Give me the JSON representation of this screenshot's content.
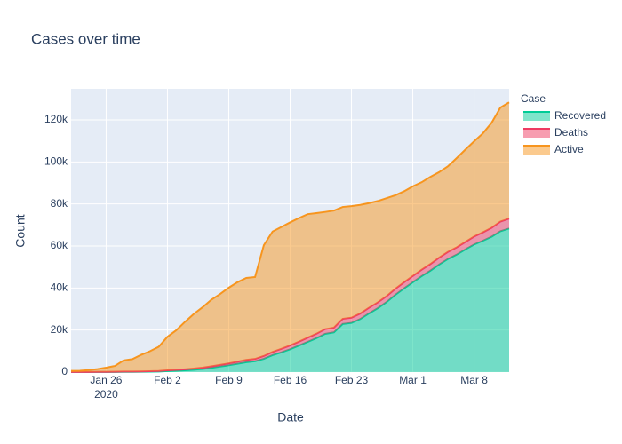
{
  "chart_data": {
    "type": "area",
    "stacked": true,
    "title": "Cases over time",
    "x_label": "Date",
    "y_label": "Count",
    "legend_title": "Case",
    "legend_position": "right",
    "grid": true,
    "x": [
      "2020-01-22",
      "2020-01-23",
      "2020-01-24",
      "2020-01-25",
      "2020-01-26",
      "2020-01-27",
      "2020-01-28",
      "2020-01-29",
      "2020-01-30",
      "2020-01-31",
      "2020-02-01",
      "2020-02-02",
      "2020-02-03",
      "2020-02-04",
      "2020-02-05",
      "2020-02-06",
      "2020-02-07",
      "2020-02-08",
      "2020-02-09",
      "2020-02-10",
      "2020-02-11",
      "2020-02-12",
      "2020-02-13",
      "2020-02-14",
      "2020-02-15",
      "2020-02-16",
      "2020-02-17",
      "2020-02-18",
      "2020-02-19",
      "2020-02-20",
      "2020-02-21",
      "2020-02-22",
      "2020-02-23",
      "2020-02-24",
      "2020-02-25",
      "2020-02-26",
      "2020-02-27",
      "2020-02-28",
      "2020-02-29",
      "2020-03-01",
      "2020-03-02",
      "2020-03-03",
      "2020-03-04",
      "2020-03-05",
      "2020-03-06",
      "2020-03-07",
      "2020-03-08",
      "2020-03-09",
      "2020-03-10",
      "2020-03-11",
      "2020-03-12"
    ],
    "xlim": [
      "2020-01-22",
      "2020-03-12"
    ],
    "xticks": [
      {
        "value": "2020-01-26",
        "label": "Jan 26",
        "year": "2020"
      },
      {
        "value": "2020-02-02",
        "label": "Feb 2"
      },
      {
        "value": "2020-02-09",
        "label": "Feb 9"
      },
      {
        "value": "2020-02-16",
        "label": "Feb 16"
      },
      {
        "value": "2020-02-23",
        "label": "Feb 23"
      },
      {
        "value": "2020-03-01",
        "label": "Mar 1"
      },
      {
        "value": "2020-03-08",
        "label": "Mar 8"
      }
    ],
    "ylim": [
      0,
      134800
    ],
    "yticks": [
      0,
      {
        "value": 20000,
        "label": "20k"
      },
      {
        "value": 40000,
        "label": "40k"
      },
      {
        "value": 60000,
        "label": "60k"
      },
      {
        "value": 80000,
        "label": "80k"
      },
      {
        "value": 100000,
        "label": "100k"
      },
      {
        "value": 120000,
        "label": "120k"
      }
    ],
    "series": [
      {
        "name": "Recovered",
        "color": "#00cc96",
        "values": [
          28,
          30,
          36,
          39,
          52,
          61,
          107,
          126,
          143,
          222,
          284,
          472,
          623,
          852,
          1124,
          1487,
          2011,
          2616,
          3244,
          3946,
          4683,
          5150,
          6295,
          8058,
          9395,
          10865,
          12583,
          14352,
          16121,
          18177,
          18890,
          22886,
          23394,
          25227,
          27905,
          30384,
          33277,
          36711,
          39782,
          42716,
          45602,
          48228,
          51170,
          53796,
          55865,
          58358,
          60694,
          62494,
          64404,
          67003,
          68324
        ]
      },
      {
        "name": "Deaths",
        "color": "#ef3b62",
        "values": [
          17,
          18,
          26,
          42,
          56,
          82,
          131,
          133,
          171,
          213,
          259,
          362,
          426,
          492,
          564,
          634,
          719,
          806,
          906,
          1013,
          1113,
          1118,
          1371,
          1523,
          1666,
          1770,
          1868,
          2007,
          2122,
          2247,
          2251,
          2458,
          2469,
          2629,
          2708,
          2770,
          2814,
          2872,
          2941,
          2996,
          3085,
          3160,
          3254,
          3348,
          3460,
          3558,
          3802,
          3988,
          4262,
          4615,
          4720
        ]
      },
      {
        "name": "Active",
        "color": "#f7951e",
        "values": [
          510,
          606,
          879,
          1353,
          2010,
          2784,
          5340,
          5907,
          7920,
          9492,
          11495,
          15953,
          18832,
          22548,
          25947,
          28696,
          31661,
          33698,
          36000,
          37803,
          39006,
          38953,
          52702,
          57304,
          57969,
          58589,
          58807,
          58777,
          57396,
          55773,
          55678,
          53228,
          53095,
          51705,
          49793,
          48234,
          46655,
          44529,
          43288,
          42657,
          41619,
          41452,
          40696,
          40742,
          42476,
          43931,
          45325,
          47108,
          49954,
          54257,
          55308
        ]
      }
    ]
  }
}
